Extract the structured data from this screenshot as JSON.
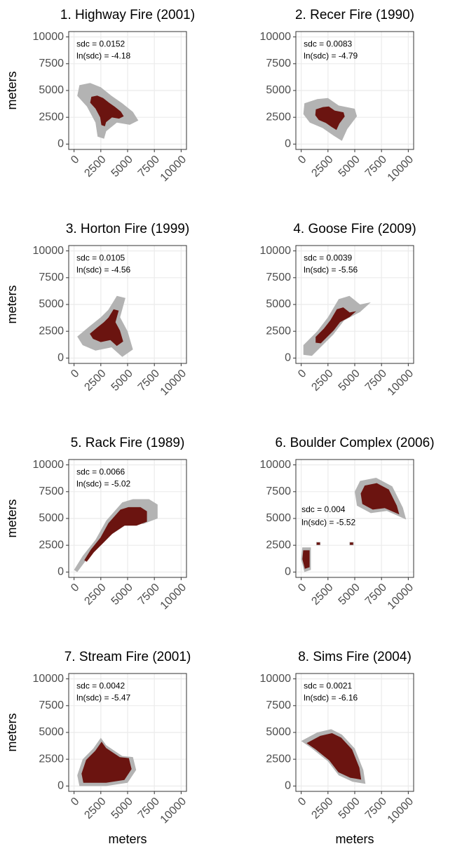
{
  "chart_data": [
    {
      "type": "map",
      "title": "1. Highway Fire (2001)",
      "annotations": [
        "sdc = 0.0152",
        "ln(sdc) =  -4.18"
      ],
      "y_label": "meters",
      "xlim": [
        -500,
        10500
      ],
      "ylim": [
        -500,
        10500
      ],
      "xticks": [
        0,
        2500,
        5000,
        7500,
        10000
      ],
      "yticks": [
        0,
        2500,
        5000,
        7500,
        10000
      ],
      "grid": true
    },
    {
      "type": "map",
      "title": "2. Recer Fire (1990)",
      "annotations": [
        "sdc = 0.0083",
        "ln(sdc) =  -4.79"
      ],
      "xlim": [
        -500,
        10500
      ],
      "ylim": [
        -500,
        10500
      ],
      "xticks": [
        0,
        2500,
        5000,
        7500,
        10000
      ],
      "yticks": [
        0,
        2500,
        5000,
        7500,
        10000
      ],
      "grid": true
    },
    {
      "type": "map",
      "title": "3. Horton Fire (1999)",
      "annotations": [
        "sdc = 0.0105",
        "ln(sdc) =  -4.56"
      ],
      "y_label": "meters",
      "xlim": [
        -500,
        10500
      ],
      "ylim": [
        -500,
        10500
      ],
      "xticks": [
        0,
        2500,
        5000,
        7500,
        10000
      ],
      "yticks": [
        0,
        2500,
        5000,
        7500,
        10000
      ],
      "grid": true
    },
    {
      "type": "map",
      "title": "4. Goose Fire (2009)",
      "annotations": [
        "sdc = 0.0039",
        "ln(sdc) =  -5.56"
      ],
      "xlim": [
        -500,
        10500
      ],
      "ylim": [
        -500,
        10500
      ],
      "xticks": [
        0,
        2500,
        5000,
        7500,
        10000
      ],
      "yticks": [
        0,
        2500,
        5000,
        7500,
        10000
      ],
      "grid": true
    },
    {
      "type": "map",
      "title": "5. Rack Fire (1989)",
      "annotations": [
        "sdc = 0.0066",
        "ln(sdc) =  -5.02"
      ],
      "y_label": "meters",
      "xlim": [
        -500,
        10500
      ],
      "ylim": [
        -500,
        10500
      ],
      "xticks": [
        0,
        2500,
        5000,
        7500,
        10000
      ],
      "yticks": [
        0,
        2500,
        5000,
        7500,
        10000
      ],
      "grid": true
    },
    {
      "type": "map",
      "title": "6. Boulder Complex (2006)",
      "annotations": [
        "sdc = 0.004",
        "ln(sdc) =  -5.52"
      ],
      "xlim": [
        -500,
        10500
      ],
      "ylim": [
        -500,
        10500
      ],
      "xticks": [
        0,
        2500,
        5000,
        7500,
        10000
      ],
      "yticks": [
        0,
        2500,
        5000,
        7500,
        10000
      ],
      "grid": true
    },
    {
      "type": "map",
      "title": "7. Stream Fire (2001)",
      "annotations": [
        "sdc = 0.0042",
        "ln(sdc) =  -5.47"
      ],
      "y_label": "meters",
      "x_label": "meters",
      "xlim": [
        -500,
        10500
      ],
      "ylim": [
        -500,
        10500
      ],
      "xticks": [
        0,
        2500,
        5000,
        7500,
        10000
      ],
      "yticks": [
        0,
        2500,
        5000,
        7500,
        10000
      ],
      "grid": true
    },
    {
      "type": "map",
      "title": "8. Sims Fire (2004)",
      "annotations": [
        "sdc = 0.0021",
        "ln(sdc) =  -6.16"
      ],
      "x_label": "meters",
      "xlim": [
        -500,
        10500
      ],
      "ylim": [
        -500,
        10500
      ],
      "xticks": [
        0,
        2500,
        5000,
        7500,
        10000
      ],
      "yticks": [
        0,
        2500,
        5000,
        7500,
        10000
      ],
      "grid": true
    }
  ]
}
